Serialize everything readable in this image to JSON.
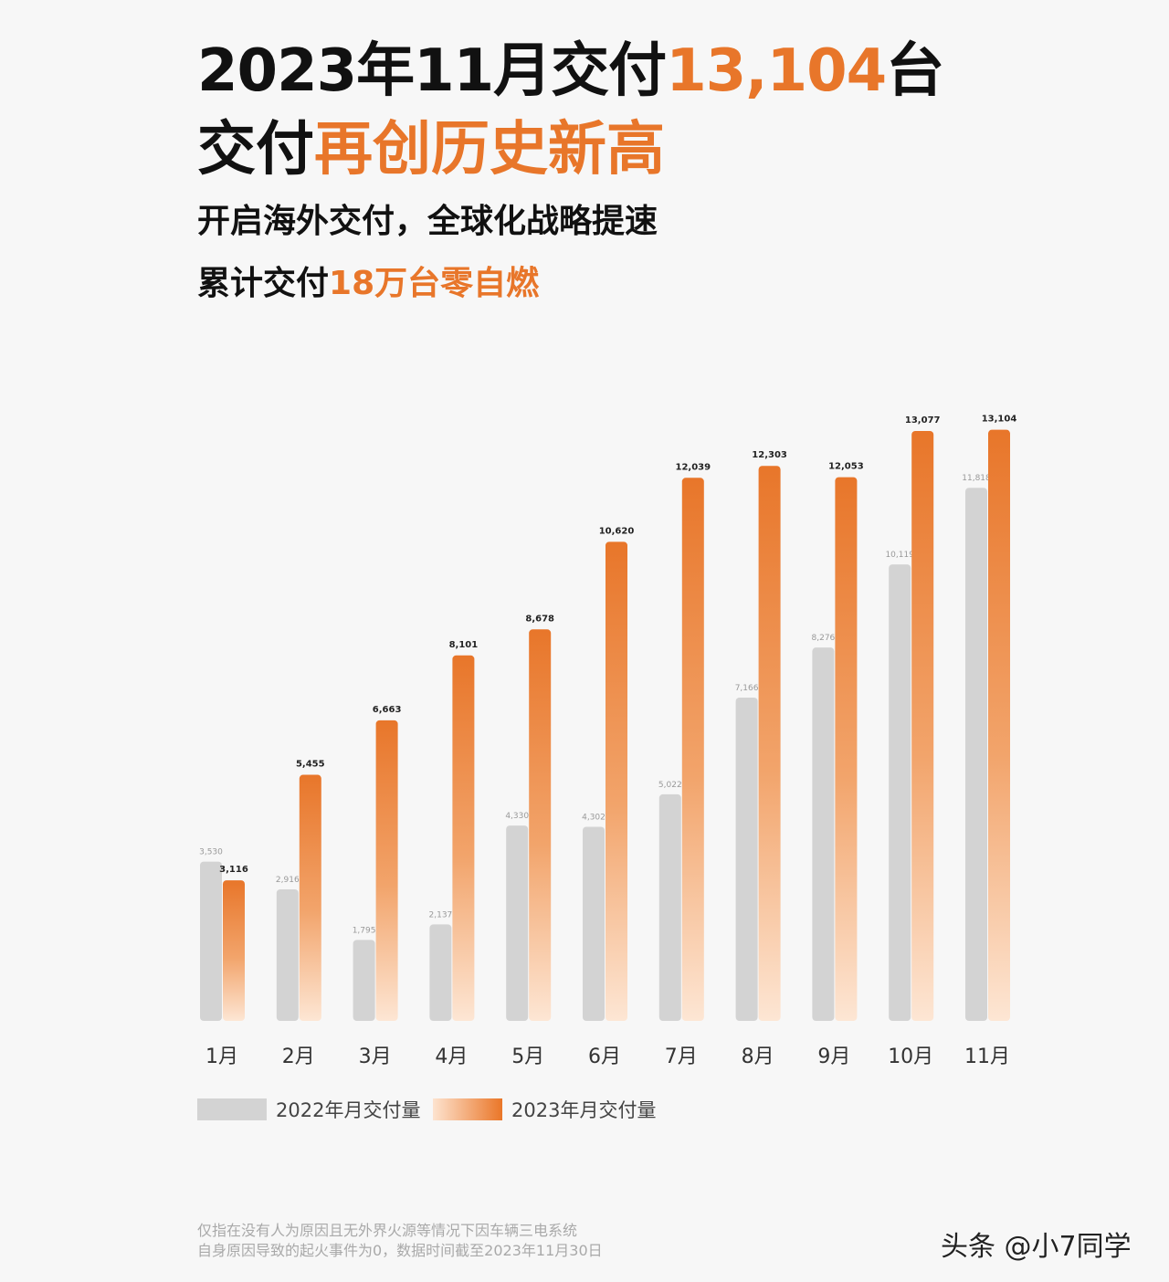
{
  "header": {
    "line1_prefix": "2023年11月交付",
    "line1_highlight": "13,104",
    "line1_suffix": "台",
    "line2_prefix": "交付",
    "line2_highlight": "再创历史新高",
    "sub1": "开启海外交付，全球化战略提速",
    "sub2_prefix": "累计交付",
    "sub2_highlight": "18万台零自燃"
  },
  "colors": {
    "accent": "#e8762a",
    "bar_2022": "#d3d3d3",
    "bar_2023_top": "#e8762a",
    "bar_2023_bottom": "#fde6d4"
  },
  "chart_data": {
    "type": "bar",
    "categories": [
      "1月",
      "2月",
      "3月",
      "4月",
      "5月",
      "6月",
      "7月",
      "8月",
      "9月",
      "10月",
      "11月"
    ],
    "series": [
      {
        "name": "2022年月交付量",
        "values": [
          3530,
          2916,
          1795,
          2137,
          4330,
          4302,
          5022,
          7166,
          8276,
          10119,
          11818
        ],
        "labels": [
          "3,530",
          "2,916",
          "1,795",
          "2,137",
          "4,330",
          "4,302",
          "5,022",
          "7,166",
          "8,276",
          "10,119",
          "11,818"
        ]
      },
      {
        "name": "2023年月交付量",
        "values": [
          3116,
          5455,
          6663,
          8101,
          8678,
          10620,
          12039,
          12303,
          12053,
          13077,
          13104
        ],
        "labels": [
          "3,116",
          "5,455",
          "6,663",
          "8,101",
          "8,678",
          "10,620",
          "12,039",
          "12,303",
          "12,053",
          "13,077",
          "13,104"
        ]
      }
    ],
    "grid": false,
    "legend_position": "bottom-left"
  },
  "footnote": {
    "line1": "仅指在没有人为原因且无外界火源等情况下因车辆三电系统",
    "line2": "自身原因导致的起火事件为0，数据时间截至2023年11月30日"
  },
  "watermark": "头条 @小7同学"
}
